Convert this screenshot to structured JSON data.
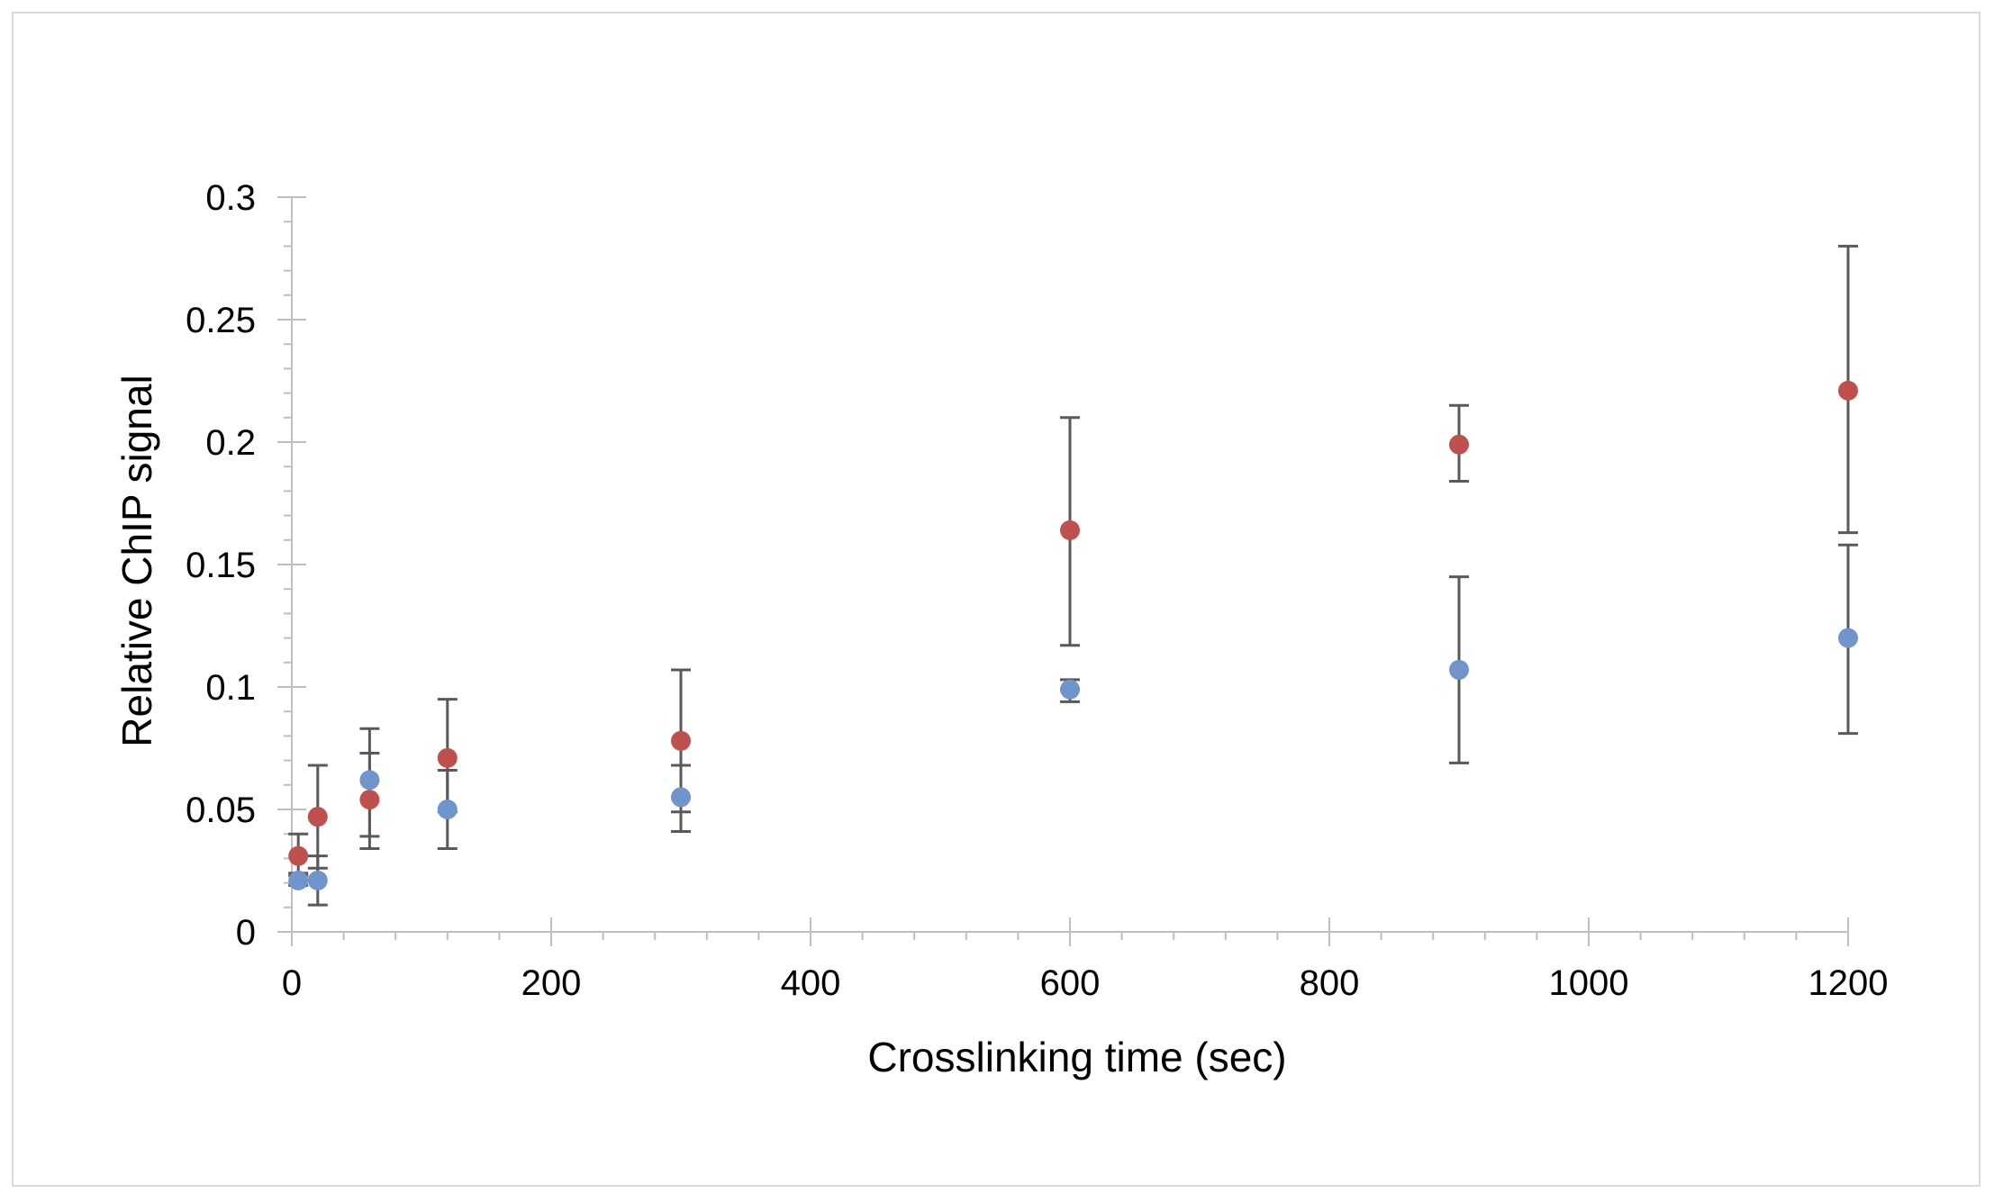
{
  "chart_data": {
    "type": "scatter",
    "title": "",
    "xlabel": "Crosslinking time (sec)",
    "ylabel": "Relative ChIP signal",
    "xlim": [
      0,
      1200
    ],
    "ylim": [
      0,
      0.3
    ],
    "x_ticks": [
      {
        "value": 0,
        "label": "0"
      },
      {
        "value": 200,
        "label": "200"
      },
      {
        "value": 400,
        "label": "400"
      },
      {
        "value": 600,
        "label": "600"
      },
      {
        "value": 800,
        "label": "800"
      },
      {
        "value": 1000,
        "label": "1000"
      },
      {
        "value": 1200,
        "label": "1200"
      }
    ],
    "y_ticks": [
      {
        "value": 0,
        "label": "0"
      },
      {
        "value": 0.05,
        "label": "0.05"
      },
      {
        "value": 0.1,
        "label": "0.1"
      },
      {
        "value": 0.15,
        "label": "0.15"
      },
      {
        "value": 0.2,
        "label": "0.2"
      },
      {
        "value": 0.25,
        "label": "0.25"
      },
      {
        "value": 0.3,
        "label": "0.3"
      }
    ],
    "x_minor_step": 40,
    "y_minor_step": 0.01,
    "grid": false,
    "legend": "none",
    "error_bar_color": "#595959",
    "axis_color": "#bfbfbf",
    "series": [
      {
        "color": "#c0504d",
        "points": [
          {
            "x": 5,
            "y": 0.031,
            "err_low": 0.023,
            "err_high": 0.04
          },
          {
            "x": 20,
            "y": 0.047,
            "err_low": 0.026,
            "err_high": 0.068
          },
          {
            "x": 60,
            "y": 0.054,
            "err_low": 0.039,
            "err_high": 0.073
          },
          {
            "x": 120,
            "y": 0.071,
            "err_low": 0.049,
            "err_high": 0.095
          },
          {
            "x": 300,
            "y": 0.078,
            "err_low": 0.049,
            "err_high": 0.107
          },
          {
            "x": 600,
            "y": 0.164,
            "err_low": 0.117,
            "err_high": 0.21
          },
          {
            "x": 900,
            "y": 0.199,
            "err_low": 0.184,
            "err_high": 0.215
          },
          {
            "x": 1200,
            "y": 0.221,
            "err_low": 0.163,
            "err_high": 0.28
          }
        ]
      },
      {
        "color": "#7094cc",
        "points": [
          {
            "x": 5,
            "y": 0.021,
            "err_low": 0.019,
            "err_high": 0.024
          },
          {
            "x": 20,
            "y": 0.021,
            "err_low": 0.011,
            "err_high": 0.031
          },
          {
            "x": 60,
            "y": 0.062,
            "err_low": 0.034,
            "err_high": 0.083
          },
          {
            "x": 120,
            "y": 0.05,
            "err_low": 0.034,
            "err_high": 0.066
          },
          {
            "x": 300,
            "y": 0.055,
            "err_low": 0.041,
            "err_high": 0.068
          },
          {
            "x": 600,
            "y": 0.099,
            "err_low": 0.094,
            "err_high": 0.103
          },
          {
            "x": 900,
            "y": 0.107,
            "err_low": 0.069,
            "err_high": 0.145
          },
          {
            "x": 1200,
            "y": 0.12,
            "err_low": 0.081,
            "err_high": 0.158
          }
        ]
      }
    ]
  }
}
